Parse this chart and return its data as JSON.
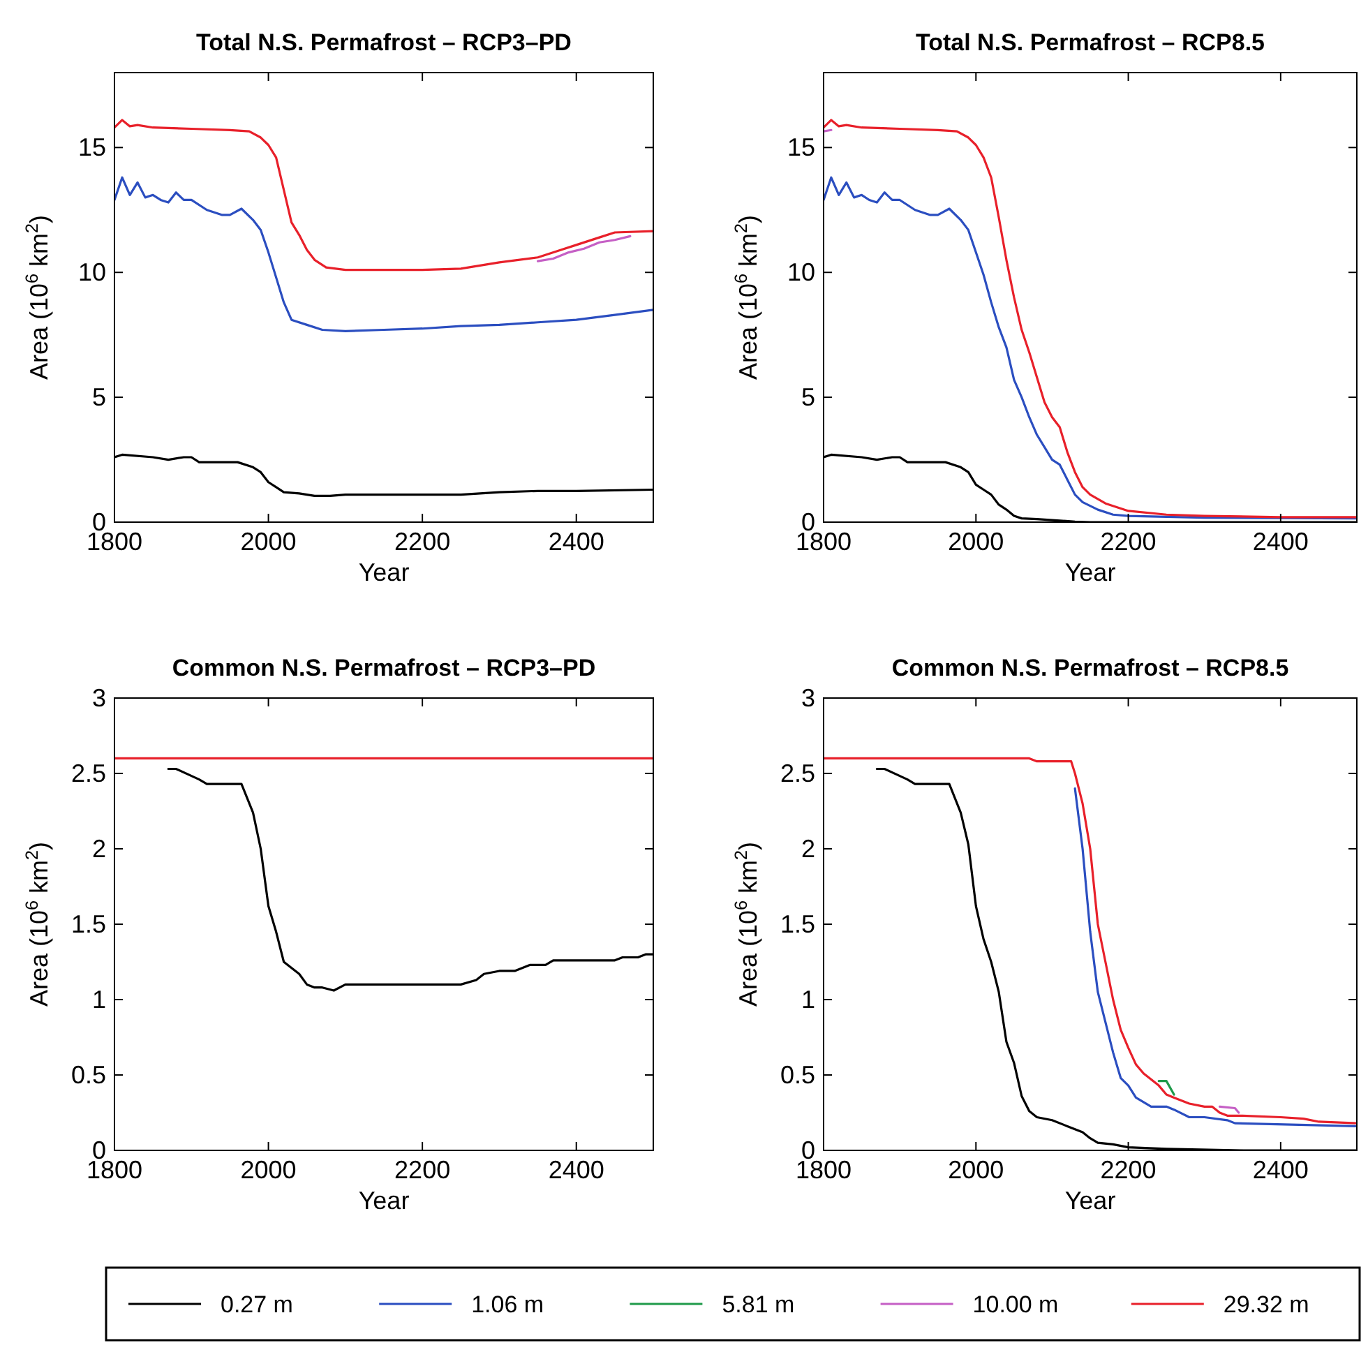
{
  "chart_data": [
    {
      "type": "line",
      "title": "Total N.S. Permafrost – RCP3–PD",
      "xlabel": "Year",
      "ylabel": "Area (10$^{6}$ km$^{2}$)",
      "xlim": [
        1800,
        2500
      ],
      "xticks": [
        1800,
        2000,
        2200,
        2400
      ],
      "ylim": [
        0,
        18
      ],
      "yticks": [
        0,
        5,
        10,
        15
      ],
      "grid": false,
      "line_style": "solid",
      "legend": "bottom",
      "series": [
        {
          "name": "0.27 m",
          "color": "#000000",
          "x": [
            1800,
            1810,
            1850,
            1870,
            1890,
            1900,
            1910,
            1960,
            1980,
            1990,
            2000,
            2010,
            2020,
            2040,
            2060,
            2080,
            2100,
            2200,
            2250,
            2300,
            2350,
            2400,
            2500
          ],
          "values": [
            2.6,
            2.7,
            2.6,
            2.5,
            2.6,
            2.6,
            2.4,
            2.4,
            2.2,
            2.0,
            1.6,
            1.4,
            1.2,
            1.15,
            1.05,
            1.05,
            1.1,
            1.1,
            1.1,
            1.2,
            1.25,
            1.25,
            1.3
          ]
        },
        {
          "name": "1.06 m",
          "color": "#2b4ec0",
          "x": [
            1800,
            1810,
            1820,
            1830,
            1840,
            1850,
            1860,
            1870,
            1880,
            1890,
            1900,
            1920,
            1940,
            1950,
            1965,
            1980,
            1990,
            2000,
            2010,
            2020,
            2030,
            2050,
            2070,
            2100,
            2150,
            2200,
            2250,
            2300,
            2350,
            2400,
            2450,
            2500
          ],
          "values": [
            12.9,
            13.8,
            13.1,
            13.6,
            13.0,
            13.1,
            12.9,
            12.8,
            13.2,
            12.9,
            12.9,
            12.5,
            12.3,
            12.3,
            12.55,
            12.1,
            11.7,
            10.8,
            9.8,
            8.8,
            8.1,
            7.9,
            7.7,
            7.65,
            7.7,
            7.75,
            7.85,
            7.9,
            8.0,
            8.1,
            8.3,
            8.5
          ]
        },
        {
          "name": "5.81 m",
          "color": "#1f9a4a"
        },
        {
          "name": "10.00 m",
          "color": "#c55fc5",
          "x": [
            2350,
            2370,
            2390,
            2410,
            2430,
            2450,
            2470
          ],
          "values": [
            10.45,
            10.55,
            10.8,
            10.95,
            11.2,
            11.3,
            11.45
          ]
        },
        {
          "name": "29.32 m",
          "color": "#e8202a",
          "x": [
            1800,
            1810,
            1820,
            1830,
            1850,
            1900,
            1950,
            1975,
            1990,
            2000,
            2010,
            2020,
            2030,
            2040,
            2050,
            2060,
            2075,
            2100,
            2150,
            2200,
            2250,
            2300,
            2350,
            2380,
            2400,
            2430,
            2450,
            2500
          ],
          "values": [
            15.8,
            16.1,
            15.85,
            15.9,
            15.8,
            15.75,
            15.7,
            15.65,
            15.4,
            15.1,
            14.6,
            13.3,
            12.0,
            11.5,
            10.9,
            10.5,
            10.2,
            10.1,
            10.1,
            10.1,
            10.15,
            10.4,
            10.6,
            10.9,
            11.1,
            11.4,
            11.6,
            11.65
          ]
        }
      ]
    },
    {
      "type": "line",
      "title": "Total N.S. Permafrost – RCP8.5",
      "xlabel": "Year",
      "ylabel": "Area (10$^{6}$ km$^{2}$)",
      "xlim": [
        1800,
        2500
      ],
      "xticks": [
        1800,
        2000,
        2200,
        2400
      ],
      "ylim": [
        0,
        18
      ],
      "yticks": [
        0,
        5,
        10,
        15
      ],
      "grid": false,
      "line_style": "solid",
      "series": [
        {
          "color": "#000000",
          "x": [
            1800,
            1810,
            1850,
            1870,
            1890,
            1900,
            1910,
            1960,
            1980,
            1990,
            2000,
            2010,
            2020,
            2030,
            2040,
            2050,
            2060,
            2080,
            2100,
            2130,
            2150,
            2500
          ],
          "values": [
            2.6,
            2.7,
            2.6,
            2.5,
            2.6,
            2.6,
            2.4,
            2.4,
            2.2,
            2.0,
            1.5,
            1.3,
            1.1,
            0.7,
            0.5,
            0.25,
            0.15,
            0.12,
            0.08,
            0.02,
            0,
            0
          ]
        },
        {
          "color": "#2b4ec0",
          "x": [
            1800,
            1810,
            1820,
            1830,
            1840,
            1850,
            1860,
            1870,
            1880,
            1890,
            1900,
            1920,
            1940,
            1950,
            1965,
            1980,
            1990,
            2000,
            2010,
            2020,
            2030,
            2040,
            2050,
            2060,
            2070,
            2080,
            2090,
            2100,
            2110,
            2120,
            2130,
            2140,
            2160,
            2180,
            2200,
            2300,
            2500
          ],
          "values": [
            12.9,
            13.8,
            13.1,
            13.6,
            13.0,
            13.1,
            12.9,
            12.8,
            13.2,
            12.9,
            12.9,
            12.5,
            12.3,
            12.3,
            12.55,
            12.1,
            11.7,
            10.8,
            9.9,
            8.8,
            7.8,
            7.0,
            5.7,
            5.0,
            4.2,
            3.5,
            3.0,
            2.5,
            2.3,
            1.7,
            1.1,
            0.8,
            0.5,
            0.3,
            0.25,
            0.18,
            0.15
          ]
        },
        {
          "color": "#c55fc5",
          "x": [
            1800,
            1810
          ],
          "values": [
            15.65,
            15.7
          ]
        },
        {
          "color": "#e8202a",
          "x": [
            1800,
            1810,
            1820,
            1830,
            1850,
            1900,
            1950,
            1975,
            1990,
            2000,
            2010,
            2020,
            2030,
            2040,
            2050,
            2060,
            2070,
            2080,
            2090,
            2100,
            2110,
            2120,
            2130,
            2140,
            2150,
            2170,
            2200,
            2250,
            2300,
            2400,
            2500
          ],
          "values": [
            15.8,
            16.1,
            15.85,
            15.9,
            15.8,
            15.75,
            15.7,
            15.65,
            15.4,
            15.1,
            14.6,
            13.8,
            12.2,
            10.5,
            9.0,
            7.7,
            6.8,
            5.8,
            4.8,
            4.2,
            3.8,
            2.8,
            2.0,
            1.4,
            1.1,
            0.75,
            0.45,
            0.3,
            0.25,
            0.2,
            0.2
          ]
        }
      ]
    },
    {
      "type": "line",
      "title": "Common N.S. Permafrost – RCP3–PD",
      "xlabel": "Year",
      "ylabel": "Area (10$^{6}$ km$^{2}$)",
      "xlim": [
        1800,
        2500
      ],
      "xticks": [
        1800,
        2000,
        2200,
        2400
      ],
      "ylim": [
        0,
        3
      ],
      "yticks": [
        0,
        0.5,
        1,
        1.5,
        2,
        2.5,
        3
      ],
      "grid": false,
      "line_style": "solid",
      "series": [
        {
          "color": "#000000",
          "x": [
            1870,
            1880,
            1910,
            1920,
            1965,
            1980,
            1990,
            2000,
            2010,
            2020,
            2040,
            2050,
            2060,
            2070,
            2085,
            2100,
            2250,
            2270,
            2280,
            2300,
            2320,
            2340,
            2360,
            2370,
            2450,
            2460,
            2480,
            2490,
            2500
          ],
          "values": [
            2.53,
            2.53,
            2.46,
            2.43,
            2.43,
            2.24,
            2.0,
            1.62,
            1.45,
            1.25,
            1.17,
            1.1,
            1.08,
            1.08,
            1.06,
            1.1,
            1.1,
            1.13,
            1.17,
            1.19,
            1.19,
            1.23,
            1.23,
            1.26,
            1.26,
            1.28,
            1.28,
            1.3,
            1.3
          ]
        },
        {
          "color": "#e8202a",
          "x": [
            1800,
            2500
          ],
          "values": [
            2.6,
            2.6
          ]
        }
      ]
    },
    {
      "type": "line",
      "title": "Common N.S. Permafrost – RCP8.5",
      "xlabel": "Year",
      "ylabel": "Area (10$^{6}$ km$^{2}$)",
      "xlim": [
        1800,
        2500
      ],
      "xticks": [
        1800,
        2000,
        2200,
        2400
      ],
      "ylim": [
        0,
        3
      ],
      "yticks": [
        0,
        0.5,
        1,
        1.5,
        2,
        2.5,
        3
      ],
      "grid": false,
      "line_style": "solid",
      "series": [
        {
          "color": "#000000",
          "x": [
            1870,
            1880,
            1910,
            1920,
            1965,
            1980,
            1990,
            2000,
            2010,
            2020,
            2030,
            2040,
            2050,
            2060,
            2070,
            2080,
            2100,
            2120,
            2140,
            2150,
            2160,
            2180,
            2200,
            2250,
            2350,
            2500
          ],
          "values": [
            2.53,
            2.53,
            2.46,
            2.43,
            2.43,
            2.24,
            2.03,
            1.62,
            1.4,
            1.25,
            1.05,
            0.72,
            0.58,
            0.36,
            0.26,
            0.22,
            0.2,
            0.16,
            0.12,
            0.08,
            0.05,
            0.04,
            0.02,
            0.01,
            0,
            0
          ]
        },
        {
          "color": "#2b4ec0",
          "x": [
            2130,
            2140,
            2150,
            2160,
            2170,
            2180,
            2190,
            2200,
            2210,
            2230,
            2250,
            2260,
            2280,
            2300,
            2330,
            2340,
            2500
          ],
          "values": [
            2.4,
            2.0,
            1.45,
            1.05,
            0.85,
            0.65,
            0.48,
            0.43,
            0.35,
            0.29,
            0.29,
            0.27,
            0.22,
            0.22,
            0.2,
            0.18,
            0.16
          ]
        },
        {
          "color": "#1f9a4a",
          "x": [
            2240,
            2250,
            2260
          ],
          "values": [
            0.46,
            0.46,
            0.37
          ]
        },
        {
          "color": "#c55fc5",
          "x": [
            2320,
            2340,
            2345
          ],
          "values": [
            0.29,
            0.28,
            0.25
          ]
        },
        {
          "color": "#e8202a",
          "x": [
            1800,
            2070,
            2080,
            2125,
            2130,
            2140,
            2150,
            2160,
            2170,
            2180,
            2190,
            2200,
            2210,
            2220,
            2240,
            2250,
            2260,
            2280,
            2300,
            2310,
            2320,
            2330,
            2350,
            2400,
            2430,
            2450,
            2500
          ],
          "values": [
            2.6,
            2.6,
            2.58,
            2.58,
            2.5,
            2.3,
            2.0,
            1.5,
            1.25,
            1.0,
            0.8,
            0.68,
            0.57,
            0.51,
            0.43,
            0.37,
            0.35,
            0.31,
            0.29,
            0.29,
            0.25,
            0.23,
            0.23,
            0.22,
            0.21,
            0.19,
            0.18
          ]
        }
      ]
    }
  ]
}
